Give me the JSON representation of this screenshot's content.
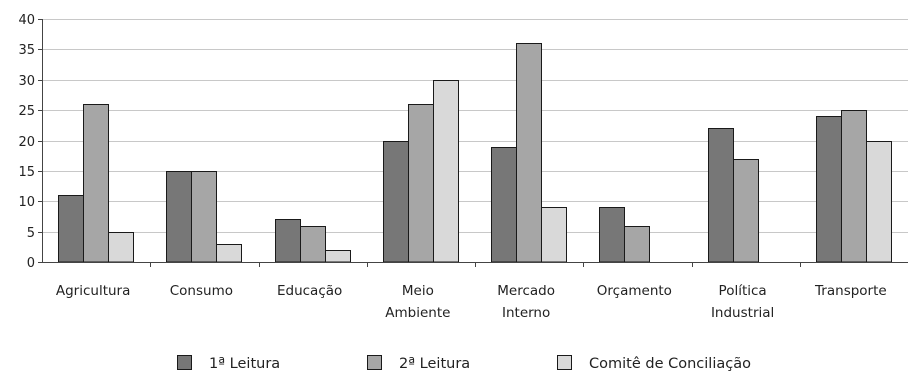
{
  "chart_data": {
    "type": "bar",
    "title": "",
    "xlabel": "",
    "ylabel": "",
    "ylim": [
      0,
      40
    ],
    "yticks": [
      0,
      5,
      10,
      15,
      20,
      25,
      30,
      35,
      40
    ],
    "grid": true,
    "legend_position": "bottom",
    "categories": [
      [
        "Agricultura"
      ],
      [
        "Consumo"
      ],
      [
        "Educação"
      ],
      [
        "Meio",
        "Ambiente"
      ],
      [
        "Mercado",
        "Interno"
      ],
      [
        "Orçamento"
      ],
      [
        "Política",
        "Industrial"
      ],
      [
        "Transporte"
      ]
    ],
    "series": [
      {
        "name": "1ª Leitura",
        "color": "#777777",
        "values": [
          11,
          15,
          7,
          20,
          19,
          9,
          22,
          24
        ]
      },
      {
        "name": "2ª Leitura",
        "color": "#a6a6a6",
        "values": [
          26,
          15,
          6,
          26,
          36,
          6,
          17,
          25
        ]
      },
      {
        "name": "Comitê de Conciliação",
        "color": "#d9d9d9",
        "values": [
          5,
          3,
          2,
          30,
          9,
          0,
          0,
          20
        ]
      }
    ]
  }
}
